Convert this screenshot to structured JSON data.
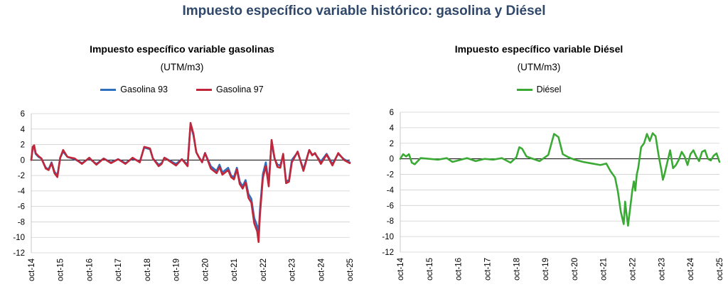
{
  "title": "Impuesto específico variable histórico: gasolina y Diésel",
  "colors": {
    "title": "#2f4769",
    "gasolina93": "#2e6fbf",
    "gasolina97": "#c0273a",
    "diesel": "#3aaa35",
    "grid": "#d0d0d0"
  },
  "chart_data": [
    {
      "type": "line",
      "title": "Impuesto específico variable gasolinas",
      "subtitle": "(UTM/m3)",
      "ylim": [
        -12,
        6
      ],
      "yticks": [
        6,
        4,
        2,
        0,
        -2,
        -4,
        -6,
        -8,
        -10,
        -12
      ],
      "xticks": [
        "oct-14",
        "oct-15",
        "oct-16",
        "oct-17",
        "oct-18",
        "oct-19",
        "oct-20",
        "oct-21",
        "oct-22",
        "oct-23",
        "oct-24",
        "oct-25"
      ],
      "grid": true,
      "legend": "top",
      "series": [
        {
          "name": "Gasolina 93",
          "color": "#2e6fbf",
          "x": [
            0,
            0.05,
            0.1,
            0.15,
            0.25,
            0.35,
            0.5,
            0.6,
            0.7,
            0.8,
            0.9,
            1.0,
            1.1,
            1.25,
            1.5,
            1.75,
            2.0,
            2.25,
            2.5,
            2.75,
            3.0,
            3.25,
            3.5,
            3.75,
            3.9,
            4.1,
            4.2,
            4.4,
            4.5,
            4.6,
            5.0,
            5.2,
            5.4,
            5.5,
            5.6,
            5.7,
            5.8,
            5.9,
            6.0,
            6.2,
            6.4,
            6.5,
            6.6,
            6.8,
            6.9,
            7.0,
            7.1,
            7.2,
            7.3,
            7.4,
            7.5,
            7.6,
            7.7,
            7.8,
            7.85,
            7.9,
            8.0,
            8.1,
            8.2,
            8.3,
            8.4,
            8.5,
            8.6,
            8.7,
            8.8,
            8.9,
            9.0,
            9.2,
            9.4,
            9.6,
            9.7,
            9.8,
            10.0,
            10.2,
            10.4,
            10.6,
            10.8,
            11.0
          ],
          "y": [
            0.0,
            1.5,
            1.6,
            0.8,
            0.4,
            0.2,
            -1.0,
            -1.2,
            -0.3,
            -1.5,
            -2.0,
            0.3,
            1.1,
            0.4,
            0.1,
            -0.4,
            0.2,
            -0.5,
            0.2,
            -0.3,
            0.1,
            -0.4,
            0.2,
            -0.2,
            1.6,
            1.4,
            0.2,
            -0.6,
            -0.4,
            0.3,
            -0.5,
            0.1,
            -0.6,
            4.6,
            3.2,
            1.0,
            0.3,
            -0.2,
            0.9,
            -0.8,
            -1.4,
            -0.6,
            -1.6,
            -1.0,
            -2.0,
            -2.2,
            -1.0,
            -2.8,
            -3.4,
            -2.6,
            -4.4,
            -5.0,
            -7.5,
            -8.5,
            -9.6,
            -6.4,
            -1.8,
            -0.3,
            -3.0,
            2.3,
            0.2,
            -0.6,
            -0.7,
            0.7,
            -2.7,
            -2.6,
            0.0,
            1.0,
            -1.2,
            1.3,
            0.7,
            0.8,
            -0.2,
            0.8,
            -0.5,
            0.8,
            0.1,
            -0.3
          ]
        },
        {
          "name": "Gasolina 97",
          "color": "#c0273a",
          "x": [
            0,
            0.05,
            0.1,
            0.15,
            0.25,
            0.35,
            0.5,
            0.6,
            0.7,
            0.8,
            0.9,
            1.0,
            1.1,
            1.25,
            1.5,
            1.75,
            2.0,
            2.25,
            2.5,
            2.75,
            3.0,
            3.25,
            3.5,
            3.75,
            3.9,
            4.1,
            4.2,
            4.4,
            4.5,
            4.6,
            5.0,
            5.2,
            5.4,
            5.5,
            5.6,
            5.7,
            5.8,
            5.9,
            6.0,
            6.2,
            6.4,
            6.5,
            6.6,
            6.8,
            6.9,
            7.0,
            7.1,
            7.2,
            7.3,
            7.4,
            7.5,
            7.6,
            7.7,
            7.8,
            7.85,
            7.9,
            8.0,
            8.1,
            8.2,
            8.3,
            8.4,
            8.5,
            8.6,
            8.7,
            8.8,
            8.9,
            9.0,
            9.2,
            9.4,
            9.6,
            9.7,
            9.8,
            10.0,
            10.2,
            10.4,
            10.6,
            10.8,
            11.0
          ],
          "y": [
            0.0,
            1.7,
            1.9,
            0.9,
            0.5,
            0.2,
            -1.1,
            -1.3,
            -0.4,
            -1.7,
            -2.2,
            0.3,
            1.3,
            0.4,
            0.2,
            -0.5,
            0.3,
            -0.6,
            0.2,
            -0.4,
            0.1,
            -0.5,
            0.3,
            -0.3,
            1.7,
            1.5,
            0.2,
            -0.8,
            -0.5,
            0.3,
            -0.7,
            0.1,
            -0.8,
            4.8,
            3.4,
            1.0,
            0.3,
            -0.3,
            0.9,
            -1.1,
            -1.7,
            -0.9,
            -1.9,
            -1.3,
            -2.2,
            -2.5,
            -1.2,
            -3.1,
            -3.7,
            -2.9,
            -4.9,
            -5.5,
            -8.2,
            -9.2,
            -10.6,
            -7.0,
            -2.3,
            -0.8,
            -3.4,
            2.6,
            0.3,
            -0.9,
            -1.0,
            0.8,
            -3.0,
            -2.8,
            -0.3,
            1.1,
            -1.4,
            1.3,
            0.6,
            0.9,
            -0.5,
            0.7,
            -0.7,
            0.9,
            0.0,
            -0.4
          ]
        }
      ]
    },
    {
      "type": "line",
      "title": "Impuesto específico variable Diésel",
      "subtitle": "(UTM/m3)",
      "ylim": [
        -12,
        6
      ],
      "yticks": [
        6,
        4,
        2,
        0,
        -2,
        -4,
        -6,
        -8,
        -10,
        -12
      ],
      "xticks": [
        "oct-14",
        "oct-15",
        "oct-16",
        "oct-17",
        "oct-18",
        "oct-19",
        "oct-20",
        "oct-21",
        "oct-22",
        "oct-23",
        "oct-24",
        "oct-25"
      ],
      "grid": true,
      "legend": "top",
      "series": [
        {
          "name": "Diésel",
          "color": "#3aaa35",
          "x": [
            0,
            0.1,
            0.2,
            0.3,
            0.4,
            0.5,
            0.7,
            1.0,
            1.3,
            1.6,
            1.8,
            2.0,
            2.3,
            2.6,
            2.9,
            3.2,
            3.5,
            3.8,
            4.0,
            4.1,
            4.2,
            4.35,
            4.5,
            4.8,
            5.1,
            5.3,
            5.45,
            5.6,
            5.8,
            6.0,
            6.3,
            6.6,
            6.9,
            7.1,
            7.25,
            7.4,
            7.5,
            7.6,
            7.7,
            7.75,
            7.8,
            7.85,
            7.9,
            8.0,
            8.05,
            8.1,
            8.15,
            8.2,
            8.3,
            8.4,
            8.5,
            8.6,
            8.7,
            8.8,
            8.9,
            9.0,
            9.05,
            9.1,
            9.2,
            9.3,
            9.4,
            9.5,
            9.6,
            9.7,
            9.8,
            9.9,
            10.0,
            10.1,
            10.2,
            10.3,
            10.4,
            10.5,
            10.6,
            10.7,
            10.8,
            10.9,
            11.0
          ],
          "y": [
            0.0,
            0.6,
            0.3,
            0.6,
            -0.5,
            -0.7,
            0.1,
            0.0,
            -0.1,
            0.1,
            -0.4,
            -0.2,
            0.1,
            -0.3,
            0.0,
            -0.1,
            0.1,
            -0.5,
            0.2,
            1.5,
            1.3,
            0.3,
            0.1,
            -0.3,
            0.5,
            3.2,
            2.8,
            0.6,
            0.2,
            -0.1,
            -0.4,
            -0.6,
            -0.8,
            -0.6,
            -1.6,
            -2.4,
            -4.2,
            -6.8,
            -8.4,
            -5.5,
            -7.2,
            -8.6,
            -7.0,
            -4.0,
            -2.9,
            -4.1,
            -2.0,
            -1.2,
            1.5,
            2.0,
            3.2,
            2.3,
            3.3,
            2.9,
            0.5,
            -1.5,
            -2.7,
            -2.1,
            -0.5,
            1.1,
            -1.2,
            -0.8,
            -0.1,
            0.9,
            0.3,
            -0.8,
            0.6,
            1.1,
            0.3,
            -0.3,
            0.9,
            1.1,
            0.0,
            -0.2,
            0.4,
            0.7,
            -0.4
          ]
        }
      ]
    }
  ]
}
